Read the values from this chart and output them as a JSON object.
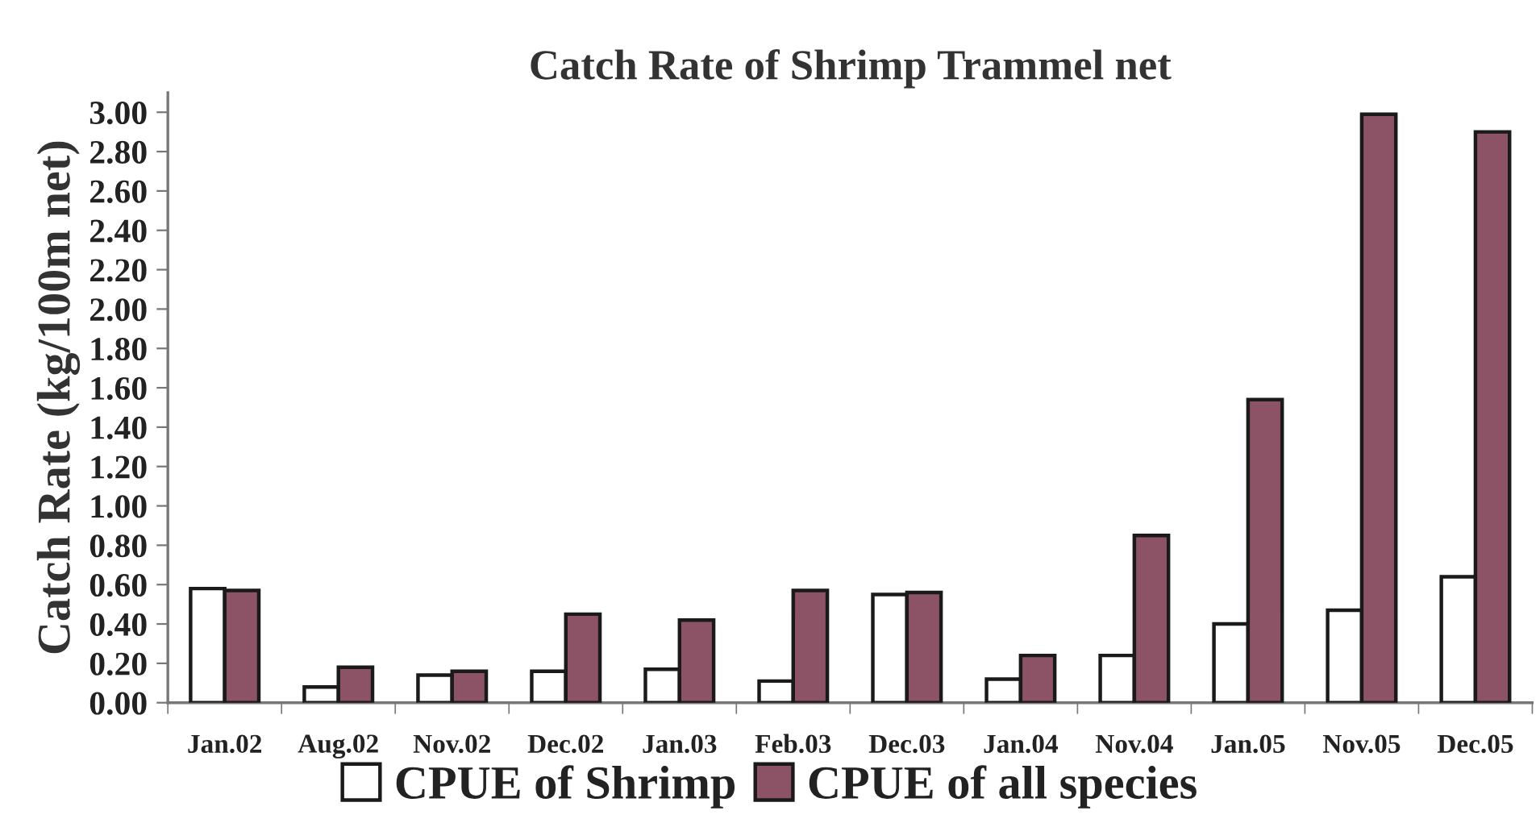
{
  "chart_data": {
    "type": "bar",
    "title": "Catch Rate of Shrimp Trammel net",
    "ylabel": "Catch Rate (kg/100m net)",
    "categories": [
      "Jan.02",
      "Aug.02",
      "Nov.02",
      "Dec.02",
      "Jan.03",
      "Feb.03",
      "Dec.03",
      "Jan.04",
      "Nov.04",
      "Jan.05",
      "Nov.05",
      "Dec.05"
    ],
    "series": [
      {
        "name": "CPUE of Shrimp",
        "color": "#ffffff",
        "values": [
          0.58,
          0.08,
          0.14,
          0.16,
          0.17,
          0.11,
          0.55,
          0.12,
          0.24,
          0.4,
          0.47,
          0.64
        ]
      },
      {
        "name": "CPUE of all species",
        "color": "#8b5365",
        "values": [
          0.57,
          0.18,
          0.16,
          0.45,
          0.42,
          0.57,
          0.56,
          0.24,
          0.85,
          1.54,
          2.99,
          2.9
        ]
      }
    ],
    "ylim": [
      0,
      3.1
    ],
    "yticks": [
      {
        "value": 0,
        "label": "0.00"
      },
      {
        "value": 0.2,
        "label": "0.20"
      },
      {
        "value": 0.4,
        "label": "0.40"
      },
      {
        "value": 0.6,
        "label": "0.60"
      },
      {
        "value": 0.8,
        "label": "0.80"
      },
      {
        "value": 1.0,
        "label": "1.00"
      },
      {
        "value": 1.2,
        "label": "1.20"
      },
      {
        "value": 1.4,
        "label": "1.40"
      },
      {
        "value": 1.6,
        "label": "1.60"
      },
      {
        "value": 1.8,
        "label": "1.80"
      },
      {
        "value": 2.0,
        "label": "2.00"
      },
      {
        "value": 2.2,
        "label": "2.20"
      },
      {
        "value": 2.4,
        "label": "2.40"
      },
      {
        "value": 2.6,
        "label": "2.60"
      },
      {
        "value": 2.8,
        "label": "2.80"
      },
      {
        "value": 3.0,
        "label": "3.00"
      }
    ],
    "grid": false,
    "legend": "bottom"
  }
}
